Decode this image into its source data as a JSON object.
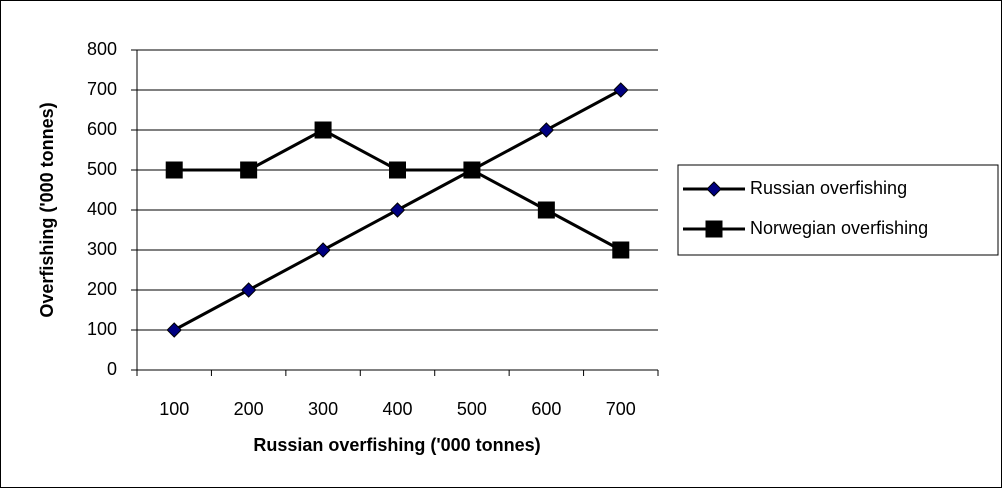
{
  "chart_data": {
    "type": "line",
    "x_label": "Russian overfishing ('000 tonnes)",
    "y_label": "Overfishing ('000 tonnes)",
    "categories": [
      "100",
      "200",
      "300",
      "400",
      "500",
      "600",
      "700"
    ],
    "series": [
      {
        "name": "Russian overfishing",
        "color": "#000000",
        "marker": "diamond",
        "marker_color": "#000080",
        "values": [
          100,
          200,
          300,
          400,
          500,
          600,
          700
        ]
      },
      {
        "name": "Norwegian overfishing",
        "color": "#000000",
        "marker": "square",
        "marker_color": "#000000",
        "values": [
          500,
          500,
          600,
          500,
          500,
          400,
          300
        ]
      }
    ],
    "ylim": [
      0,
      800
    ],
    "yticks": [
      0,
      100,
      200,
      300,
      400,
      500,
      600,
      700,
      800
    ],
    "grid": true,
    "legend": "right"
  }
}
